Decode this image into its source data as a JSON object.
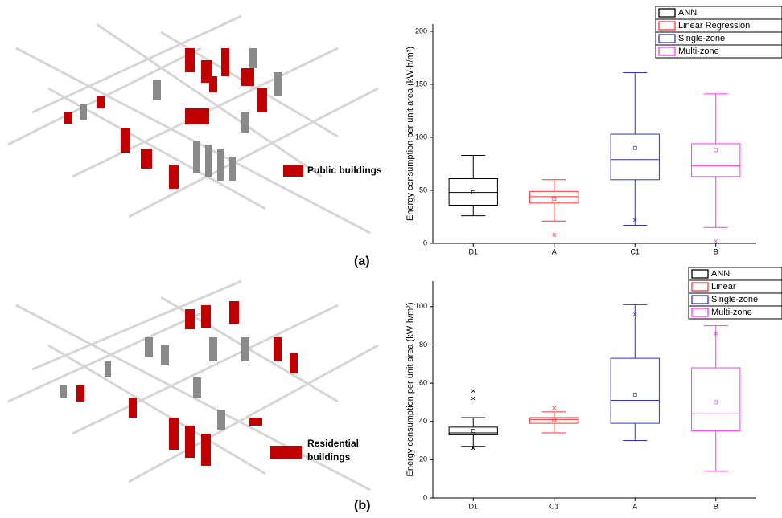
{
  "figure": {
    "panels": [
      {
        "label": "(a)",
        "legend": [
          "Public buildings"
        ]
      },
      {
        "label": "(b)",
        "legend": [
          "Residential",
          "buildings"
        ]
      }
    ]
  },
  "chart_data": [
    {
      "type": "box",
      "y_label": "Energy consumption per unit area (kW·h/m²)",
      "categories": [
        "D1",
        "A",
        "C1",
        "B"
      ],
      "ylim": [
        0,
        200
      ],
      "yticks": [
        0,
        50,
        100,
        150,
        200
      ],
      "legend": "top-right",
      "series": [
        {
          "name": "ANN",
          "color": "#000000",
          "min": 26,
          "q1": 36,
          "median": 48,
          "q3": 61,
          "max": 83,
          "mean": 48,
          "outliers": []
        },
        {
          "name": "Linear Regression",
          "color": "#ff3333",
          "min": 21,
          "q1": 38,
          "median": 44,
          "q3": 49,
          "max": 60,
          "mean": 42,
          "outliers": [
            8
          ]
        },
        {
          "name": "Single-zone",
          "color": "#3333cc",
          "min": 17,
          "q1": 60,
          "median": 79,
          "q3": 103,
          "max": 161,
          "mean": 90,
          "outliers": [
            22
          ]
        },
        {
          "name": "Multi-zone",
          "color": "#ff33ff",
          "min": 15,
          "q1": 63,
          "median": 73,
          "q3": 94,
          "max": 141,
          "mean": 88,
          "outliers": [
            2
          ]
        }
      ]
    },
    {
      "type": "box",
      "y_label": "Energy consumption per unit area (kW·h/m²)",
      "categories": [
        "D1",
        "C1",
        "A",
        "B"
      ],
      "ylim": [
        0,
        110
      ],
      "yticks": [
        0,
        20,
        40,
        60,
        80,
        100
      ],
      "legend": "top-right",
      "series": [
        {
          "name": "ANN",
          "color": "#000000",
          "min": 27,
          "q1": 33,
          "median": 34,
          "q3": 37,
          "max": 42,
          "mean": 35,
          "outliers": [
            26,
            52,
            56
          ]
        },
        {
          "name": "Linear",
          "color": "#ff3333",
          "min": 34,
          "q1": 39,
          "median": 41,
          "q3": 42,
          "max": 45,
          "mean": 41,
          "outliers": [
            47
          ]
        },
        {
          "name": "Single-zone",
          "color": "#3333cc",
          "min": 30,
          "q1": 39,
          "median": 51,
          "q3": 73,
          "max": 101,
          "mean": 54,
          "outliers": [
            96
          ]
        },
        {
          "name": "Multi-zone",
          "color": "#ff33ff",
          "min": 14,
          "q1": 35,
          "median": 44,
          "q3": 68,
          "max": 90,
          "mean": 50,
          "outliers": [
            86
          ]
        }
      ]
    }
  ]
}
